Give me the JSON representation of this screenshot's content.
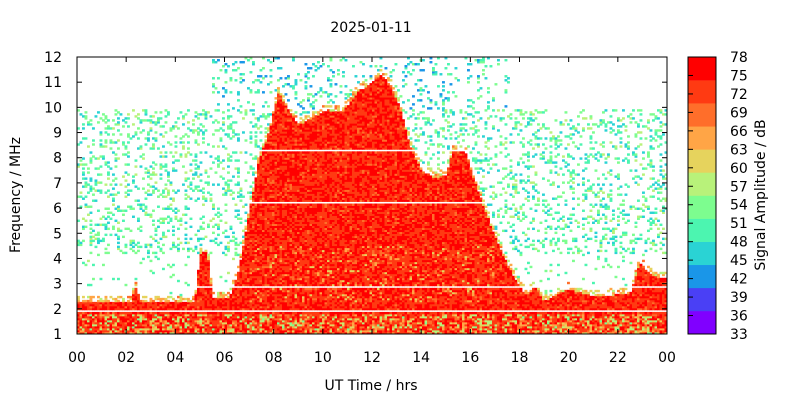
{
  "chart_data": {
    "type": "heatmap",
    "title": "2025-01-11",
    "xlabel": "UT Time / hrs",
    "ylabel": "Frequency / MHz",
    "colorbar_label": "Signal Amplitude / dB",
    "x_tick_labels": [
      "00",
      "02",
      "04",
      "06",
      "08",
      "10",
      "12",
      "14",
      "16",
      "18",
      "20",
      "22",
      "00"
    ],
    "xlim": [
      0,
      24
    ],
    "ylim": [
      1,
      12
    ],
    "y_ticks": [
      1,
      2,
      3,
      4,
      5,
      6,
      7,
      8,
      9,
      10,
      11,
      12
    ],
    "colorbar_ticks": [
      33,
      36,
      39,
      42,
      45,
      48,
      51,
      54,
      57,
      60,
      63,
      66,
      69,
      72,
      75,
      78
    ],
    "colorbar_range": [
      33,
      78
    ],
    "colormap": [
      "#8000ff",
      "#4a40f5",
      "#1a96e8",
      "#2ad3d4",
      "#4cf5b0",
      "#7dfd8f",
      "#b8f27a",
      "#e6d35d",
      "#ffa546",
      "#ff6e2a",
      "#ff3a12",
      "#ff0000"
    ],
    "reflection_ceiling_mhz": [
      {
        "t": 0.0,
        "f": 2.3
      },
      {
        "t": 2.2,
        "f": 2.3
      },
      {
        "t": 2.4,
        "f": 2.9
      },
      {
        "t": 2.6,
        "f": 2.3
      },
      {
        "t": 4.8,
        "f": 2.3
      },
      {
        "t": 5.0,
        "f": 4.2
      },
      {
        "t": 5.3,
        "f": 4.3
      },
      {
        "t": 5.5,
        "f": 2.4
      },
      {
        "t": 6.2,
        "f": 2.4
      },
      {
        "t": 6.6,
        "f": 3.6
      },
      {
        "t": 7.0,
        "f": 5.8
      },
      {
        "t": 7.4,
        "f": 7.9
      },
      {
        "t": 7.8,
        "f": 9.0
      },
      {
        "t": 8.2,
        "f": 10.6
      },
      {
        "t": 8.6,
        "f": 9.9
      },
      {
        "t": 9.0,
        "f": 9.3
      },
      {
        "t": 9.6,
        "f": 9.6
      },
      {
        "t": 10.2,
        "f": 9.9
      },
      {
        "t": 10.8,
        "f": 9.8
      },
      {
        "t": 11.4,
        "f": 10.6
      },
      {
        "t": 12.0,
        "f": 11.0
      },
      {
        "t": 12.4,
        "f": 11.3
      },
      {
        "t": 12.8,
        "f": 10.8
      },
      {
        "t": 13.2,
        "f": 9.8
      },
      {
        "t": 13.6,
        "f": 8.3
      },
      {
        "t": 14.0,
        "f": 7.5
      },
      {
        "t": 14.6,
        "f": 7.2
      },
      {
        "t": 15.0,
        "f": 7.3
      },
      {
        "t": 15.3,
        "f": 8.3
      },
      {
        "t": 15.8,
        "f": 8.2
      },
      {
        "t": 16.2,
        "f": 7.0
      },
      {
        "t": 16.8,
        "f": 5.4
      },
      {
        "t": 17.3,
        "f": 4.2
      },
      {
        "t": 17.8,
        "f": 3.2
      },
      {
        "t": 18.3,
        "f": 2.5
      },
      {
        "t": 18.6,
        "f": 2.9
      },
      {
        "t": 19.0,
        "f": 2.3
      },
      {
        "t": 20.0,
        "f": 2.8
      },
      {
        "t": 21.0,
        "f": 2.5
      },
      {
        "t": 22.5,
        "f": 2.6
      },
      {
        "t": 22.9,
        "f": 3.8
      },
      {
        "t": 23.4,
        "f": 3.3
      },
      {
        "t": 24.0,
        "f": 3.2
      }
    ],
    "noise_band_mhz": [
      4.2,
      9.9
    ],
    "sparse_band_mhz": [
      9.9,
      12.0
    ],
    "sparse_band_time_hrs": [
      5.5,
      17.6
    ],
    "horizontal_gaps_mhz": [
      1.95,
      2.9,
      6.25,
      8.3
    ],
    "grid": false,
    "legend": "colorbar-right"
  }
}
